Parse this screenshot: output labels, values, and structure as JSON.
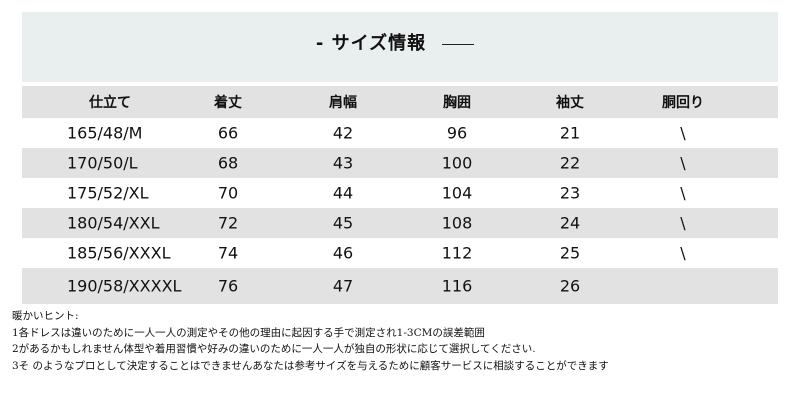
{
  "title": "- サイズ情報",
  "headers": [
    "仕立て",
    "着丈",
    "肩幅",
    "胸囲",
    "袖丈",
    "胴回り"
  ],
  "rows": [
    [
      "165/48/M",
      "66",
      "42",
      "96",
      "21",
      "\\"
    ],
    [
      "170/50/L",
      "68",
      "43",
      "100",
      "22",
      "\\"
    ],
    [
      "175/52/XL",
      "70",
      "44",
      "104",
      "23",
      "\\"
    ],
    [
      "180/54/XXL",
      "72",
      "45",
      "108",
      "24",
      "\\"
    ],
    [
      "185/56/XXXL",
      "74",
      "46",
      "112",
      "25",
      "\\"
    ],
    [
      "190/58/XXXXL",
      "76",
      "47",
      "116",
      "26",
      ""
    ]
  ],
  "notes": [
    "暖かいヒント:",
    "1各ドレスは違いのために一人一人の測定やその他の理由に起因する手で測定され1-3CMの誤差範囲",
    "2があるかもしれません体型や着用習慣や好みの違いのために一人一人が独自の形状に応じて選択してください.",
    "3そ のようなプロとして決定することはできませんあなたは参考サイズを与えるために顧客サービスに相談することができます"
  ]
}
